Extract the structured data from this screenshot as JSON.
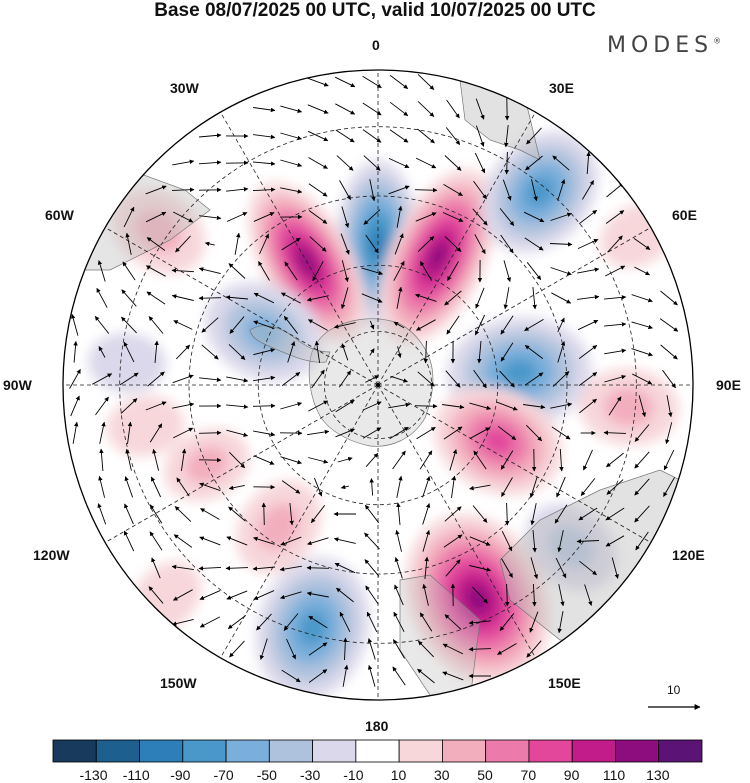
{
  "title": "Base 08/07/2025 00 UTC, valid 10/07/2025 00 UTC",
  "brand": "MODES",
  "brand_mark": "®",
  "longitude_labels": {
    "lon_0": "0",
    "lon_30e": "30E",
    "lon_60e": "60E",
    "lon_90e": "90E",
    "lon_120e": "120E",
    "lon_150e": "150E",
    "lon_180": "180",
    "lon_150w": "150W",
    "lon_120w": "120W",
    "lon_90w": "90W",
    "lon_60w": "60W",
    "lon_30w": "30W"
  },
  "reference_vector": {
    "value": "10"
  },
  "colorbar": {
    "ticks": [
      "-130",
      "-110",
      "-90",
      "-70",
      "-50",
      "-30",
      "-10",
      "10",
      "30",
      "50",
      "70",
      "90",
      "110",
      "130"
    ],
    "colors": [
      "#183a5c",
      "#1d5f8e",
      "#2c7fb8",
      "#4a98c9",
      "#7aaedb",
      "#afc2dd",
      "#dad8ea",
      "#ffffff",
      "#f7d7da",
      "#f3aebd",
      "#ec7bab",
      "#e2479c",
      "#c21b8a",
      "#8e0d7e",
      "#5b1476"
    ]
  },
  "chart_data": {
    "type": "heatmap",
    "projection": "south polar stereographic",
    "field": "contoured anomaly field with wind vectors",
    "legend_placement": "bottom",
    "levels": [
      -130,
      -110,
      -90,
      -70,
      -50,
      -30,
      -10,
      10,
      30,
      50,
      70,
      90,
      110,
      130
    ],
    "centers": [
      {
        "lon": 0,
        "lat_ring": 0.45,
        "value": -100,
        "shape": "elongated"
      },
      {
        "lon": 25,
        "lat_ring": 0.45,
        "value": 120,
        "shape": "elongated"
      },
      {
        "lon": -30,
        "lat_ring": 0.45,
        "value": 110,
        "shape": "elongated"
      },
      {
        "lon": 40,
        "lat_ring": 0.8,
        "value": -70
      },
      {
        "lon": 60,
        "lat_ring": 0.95,
        "value": 20
      },
      {
        "lon": -55,
        "lat_ring": 0.85,
        "value": 40
      },
      {
        "lon": 85,
        "lat_ring": 0.45,
        "value": -80
      },
      {
        "lon": 95,
        "lat_ring": 0.8,
        "value": 40
      },
      {
        "lon": -65,
        "lat_ring": 0.4,
        "value": -60
      },
      {
        "lon": 115,
        "lat_ring": 0.42,
        "value": 70
      },
      {
        "lon": 130,
        "lat_ring": 0.8,
        "value": -40
      },
      {
        "lon": 155,
        "lat_ring": 0.75,
        "value": 110
      },
      {
        "lon": -165,
        "lat_ring": 0.8,
        "value": -80
      },
      {
        "lon": -145,
        "lat_ring": 0.55,
        "value": 40
      },
      {
        "lon": -135,
        "lat_ring": 0.95,
        "value": 20
      },
      {
        "lon": -115,
        "lat_ring": 0.6,
        "value": 30
      },
      {
        "lon": -100,
        "lat_ring": 0.75,
        "value": 20
      },
      {
        "lon": -85,
        "lat_ring": 0.8,
        "value": -20
      }
    ]
  }
}
